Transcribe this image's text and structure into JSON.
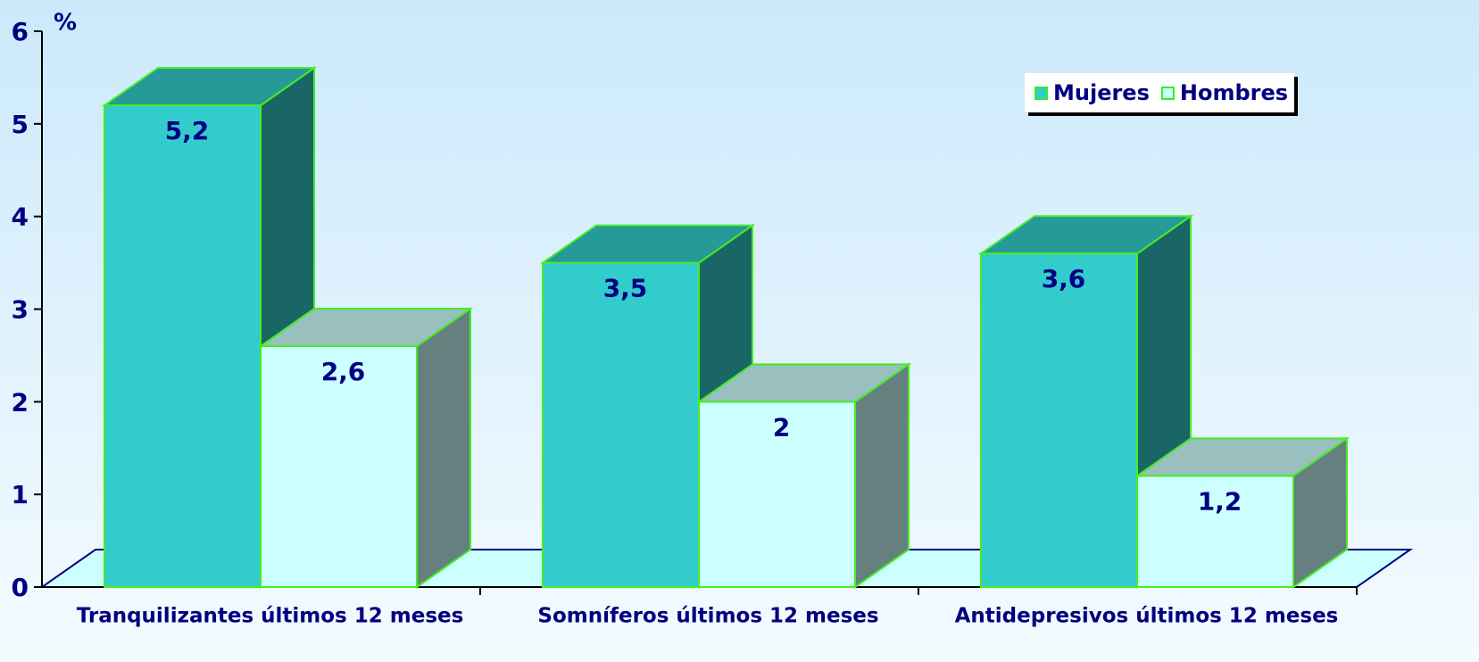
{
  "chart_data": {
    "type": "bar3d",
    "y_unit_label": "%",
    "categories": [
      "Tranquilizantes últimos 12 meses",
      "Somníferos últimos 12 meses",
      "Antidepresivos últimos 12 meses"
    ],
    "series": [
      {
        "name": "Mujeres",
        "color": "#33cccc",
        "values": [
          5.2,
          3.5,
          3.6
        ],
        "value_labels": [
          "5,2",
          "3,5",
          "3,6"
        ]
      },
      {
        "name": "Hombres",
        "color": "#ccffff",
        "values": [
          2.6,
          2,
          1.2
        ],
        "value_labels": [
          "2,6",
          "2",
          "1,2"
        ]
      }
    ],
    "ylim": [
      0,
      6
    ],
    "yticks": [
      0,
      1,
      2,
      3,
      4,
      5,
      6
    ],
    "legend": "top-right"
  }
}
